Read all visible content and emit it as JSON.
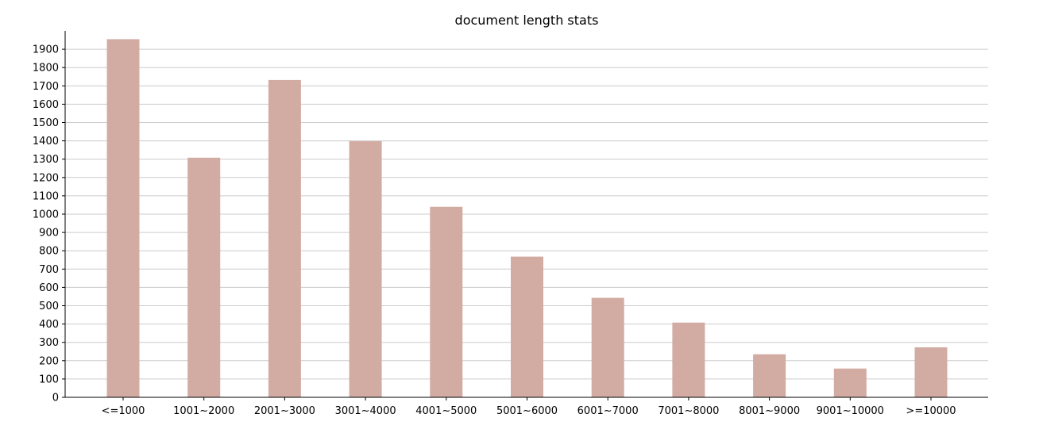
{
  "chart_data": {
    "type": "bar",
    "title": "document length stats",
    "xlabel": "",
    "ylabel": "",
    "categories": [
      "<=1000",
      "1001~2000",
      "2001~3000",
      "3001~4000",
      "4001~5000",
      "5001~6000",
      "6001~7000",
      "7001~8000",
      "8001~9000",
      "9001~10000",
      ">=10000"
    ],
    "values": [
      1955,
      1308,
      1732,
      1398,
      1040,
      768,
      543,
      408,
      235,
      157,
      273
    ],
    "ylim": [
      0,
      2000
    ],
    "yticks": [
      0,
      100,
      200,
      300,
      400,
      500,
      600,
      700,
      800,
      900,
      1000,
      1100,
      1200,
      1300,
      1400,
      1500,
      1600,
      1700,
      1800,
      1900
    ],
    "grid": "horizontal",
    "bar_color": "#d2aca3",
    "grid_color": "#cccccc",
    "legend": "none"
  }
}
